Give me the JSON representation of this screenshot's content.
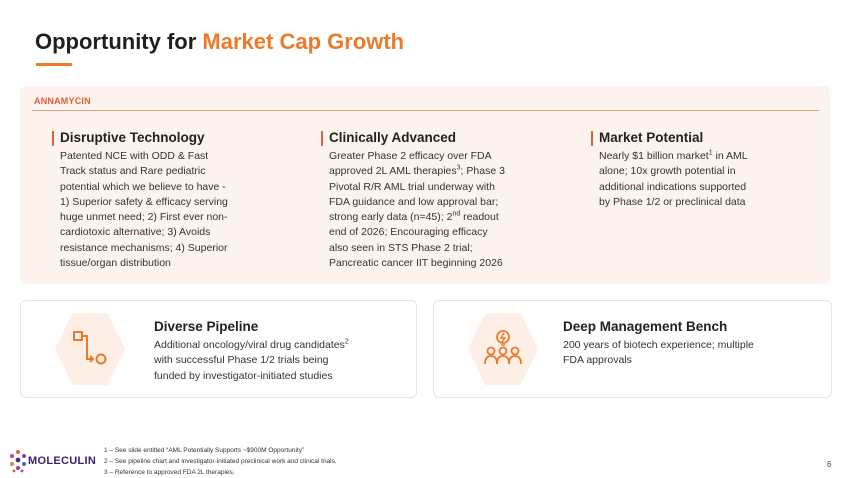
{
  "title": {
    "prefix": "Opportunity for ",
    "accent": "Market Cap Growth"
  },
  "panel": {
    "label": "ANNAMYCIN",
    "columns": [
      {
        "title": "Disruptive Technology",
        "lines": [
          "Patented NCE with ODD & Fast",
          "Track status and Rare pediatric",
          "potential which we believe to have -",
          "1) Superior safety & efficacy serving",
          "huge unmet need; 2) First ever non-",
          "cardiotoxic alternative; 3) Avoids",
          "resistance mechanisms; 4) Superior",
          "tissue/organ distribution"
        ]
      },
      {
        "title": "Clinically Advanced",
        "line1": "Greater Phase 2 efficacy over FDA",
        "line2a": "approved 2L AML therapies",
        "line2sup": "3",
        "line2b": "; Phase 3",
        "line3": "Pivotal R/R AML trial underway with",
        "line4": "FDA guidance and low approval bar;",
        "line5a": "strong early data (n=45); 2",
        "line5sup": "nd",
        "line5b": " readout",
        "line6": "end of 2026; Encouraging efficacy",
        "line7": "also seen in STS Phase 2 trial;",
        "line8": "Pancreatic cancer IIT beginning 2026"
      },
      {
        "title": "Market Potential",
        "line1a": "Nearly $1 billion market",
        "line1sup": "1",
        "line1b": " in AML",
        "line2": "alone; 10x growth potential in",
        "line3": "additional indications supported",
        "line4": "by Phase 1/2 or preclinical data"
      }
    ]
  },
  "cards": [
    {
      "title": "Diverse Pipeline",
      "icon": "pipeline-icon",
      "line1a": "Additional oncology/viral drug candidates",
      "line1sup": "2",
      "line2": "with successful Phase 1/2 trials being",
      "line3": "funded by investigator-initiated studies"
    },
    {
      "title": "Deep Management Bench",
      "icon": "team-idea-icon",
      "line1": "200 years of biotech experience; multiple",
      "line2": "FDA approvals"
    }
  ],
  "logo": {
    "text": "MOLECULIN"
  },
  "footnotes": [
    "1 – See slide entitled “AML Potentially Supports ~$900M Opportunity”",
    "2 – See pipeline chart and investigator-initiated preclinical work and clinical trials.",
    "3 – Reference to approved FDA 2L therapies."
  ],
  "page_number": "6",
  "colors": {
    "accent": "#ec7a2b",
    "panel_bg": "#fdf3ee",
    "bar": "#e0603a",
    "logo": "#3b1f6e"
  }
}
